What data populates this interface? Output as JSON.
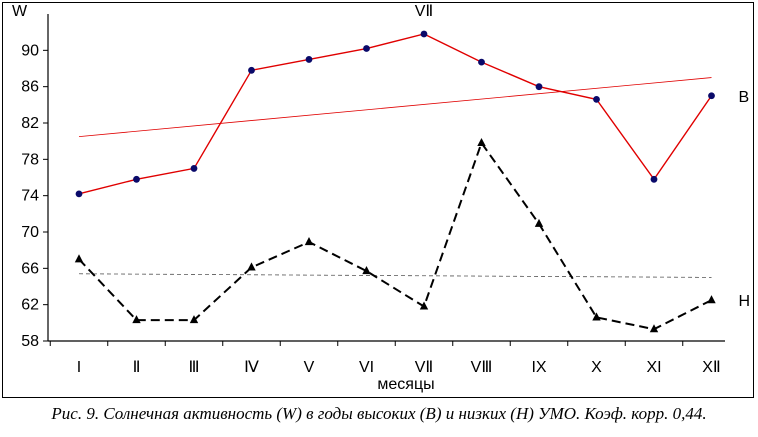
{
  "chart_data": {
    "type": "line",
    "ylabel": "W",
    "xlabel": "месяцы",
    "annotation_top": "VⅡ",
    "categories": [
      "I",
      "Ⅱ",
      "Ⅲ",
      "Ⅳ",
      "V",
      "VI",
      "VⅡ",
      "VⅢ",
      "IX",
      "X",
      "XI",
      "XⅡ"
    ],
    "ylim": [
      58,
      94
    ],
    "yticks": [
      58,
      62,
      66,
      70,
      74,
      78,
      82,
      86,
      90
    ],
    "grid": false,
    "series": [
      {
        "name": "B",
        "color": "#e00000",
        "marker": "circle",
        "style": "solid",
        "values": [
          74.2,
          75.8,
          77.0,
          87.8,
          89.0,
          90.2,
          91.8,
          88.7,
          86.0,
          84.6,
          75.8,
          85.0
        ],
        "trend": [
          80.5,
          87.0
        ]
      },
      {
        "name": "H",
        "color": "#000000",
        "marker": "triangle",
        "style": "dashed",
        "values": [
          67.0,
          60.3,
          60.3,
          66.1,
          68.9,
          65.7,
          61.8,
          79.8,
          70.9,
          60.6,
          59.3,
          62.5
        ],
        "trend": [
          65.4,
          65.0
        ]
      }
    ]
  },
  "caption": "Рис. 9. Солнечная активность (W) в годы высоких (B) и низких (H) УМО. Коэф. корр. 0,44."
}
